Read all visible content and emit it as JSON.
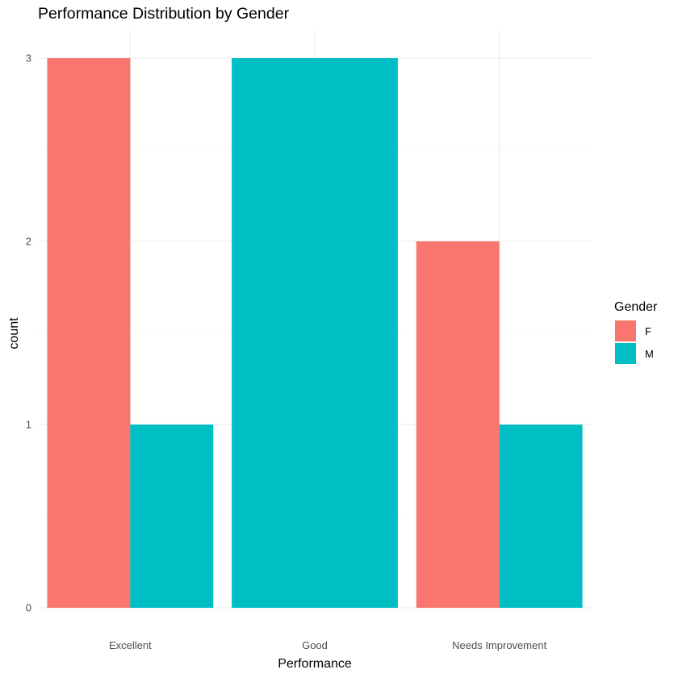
{
  "chart_data": {
    "type": "bar",
    "title": "Performance Distribution by Gender",
    "xlabel": "Performance",
    "ylabel": "count",
    "categories": [
      "Excellent",
      "Good",
      "Needs Improvement"
    ],
    "series": [
      {
        "name": "F",
        "color": "#F8766D",
        "values": [
          3,
          null,
          2
        ]
      },
      {
        "name": "M",
        "color": "#00BFC4",
        "values": [
          1,
          3,
          1
        ]
      }
    ],
    "yticks": [
      "0",
      "1",
      "2",
      "3"
    ],
    "ylim": [
      0,
      3.15
    ],
    "grid": true,
    "legend": {
      "title": "Gender",
      "placement": "right",
      "entries": [
        "F",
        "M"
      ]
    }
  }
}
